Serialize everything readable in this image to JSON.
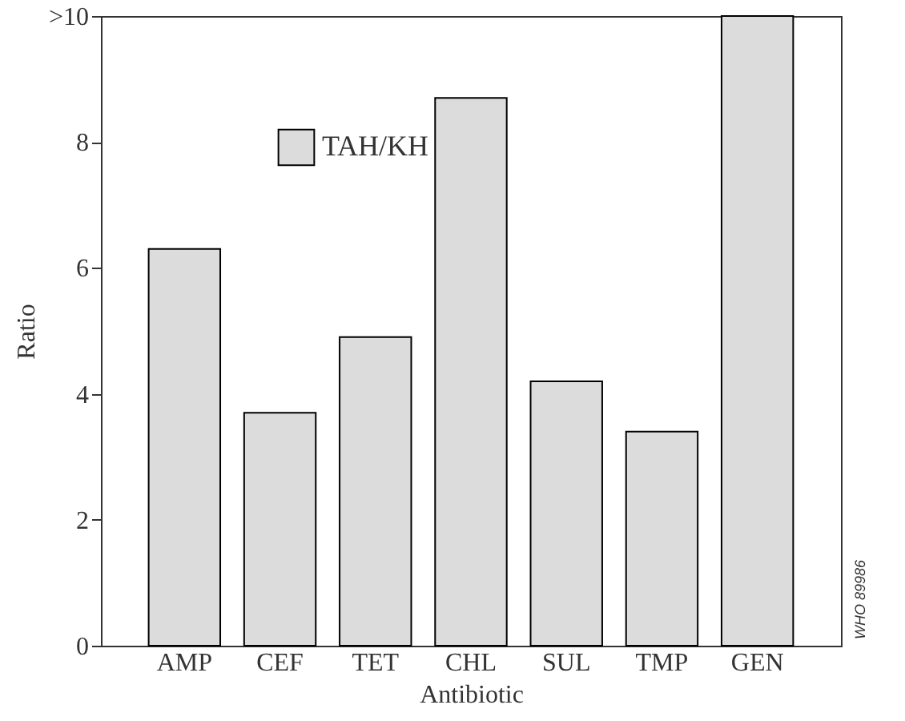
{
  "chart_data": {
    "type": "bar",
    "xlabel": "Antibiotic",
    "ylabel": "Ratio",
    "categories": [
      "AMP",
      "CEF",
      "TET",
      "CHL",
      "SUL",
      "TMP",
      "GEN"
    ],
    "series": [
      {
        "name": "TAH/KH",
        "color": "#dcdcdc",
        "values": [
          6.3,
          3.7,
          4.9,
          8.7,
          4.2,
          3.4,
          10
        ]
      }
    ],
    "ylim": [
      0,
      10
    ],
    "yticks": [
      0,
      2,
      4,
      6,
      8,
      {
        "value": 10,
        "label": ">10"
      }
    ],
    "legend": "top left",
    "grid": false,
    "annotations": [
      "WHO 89986"
    ]
  }
}
